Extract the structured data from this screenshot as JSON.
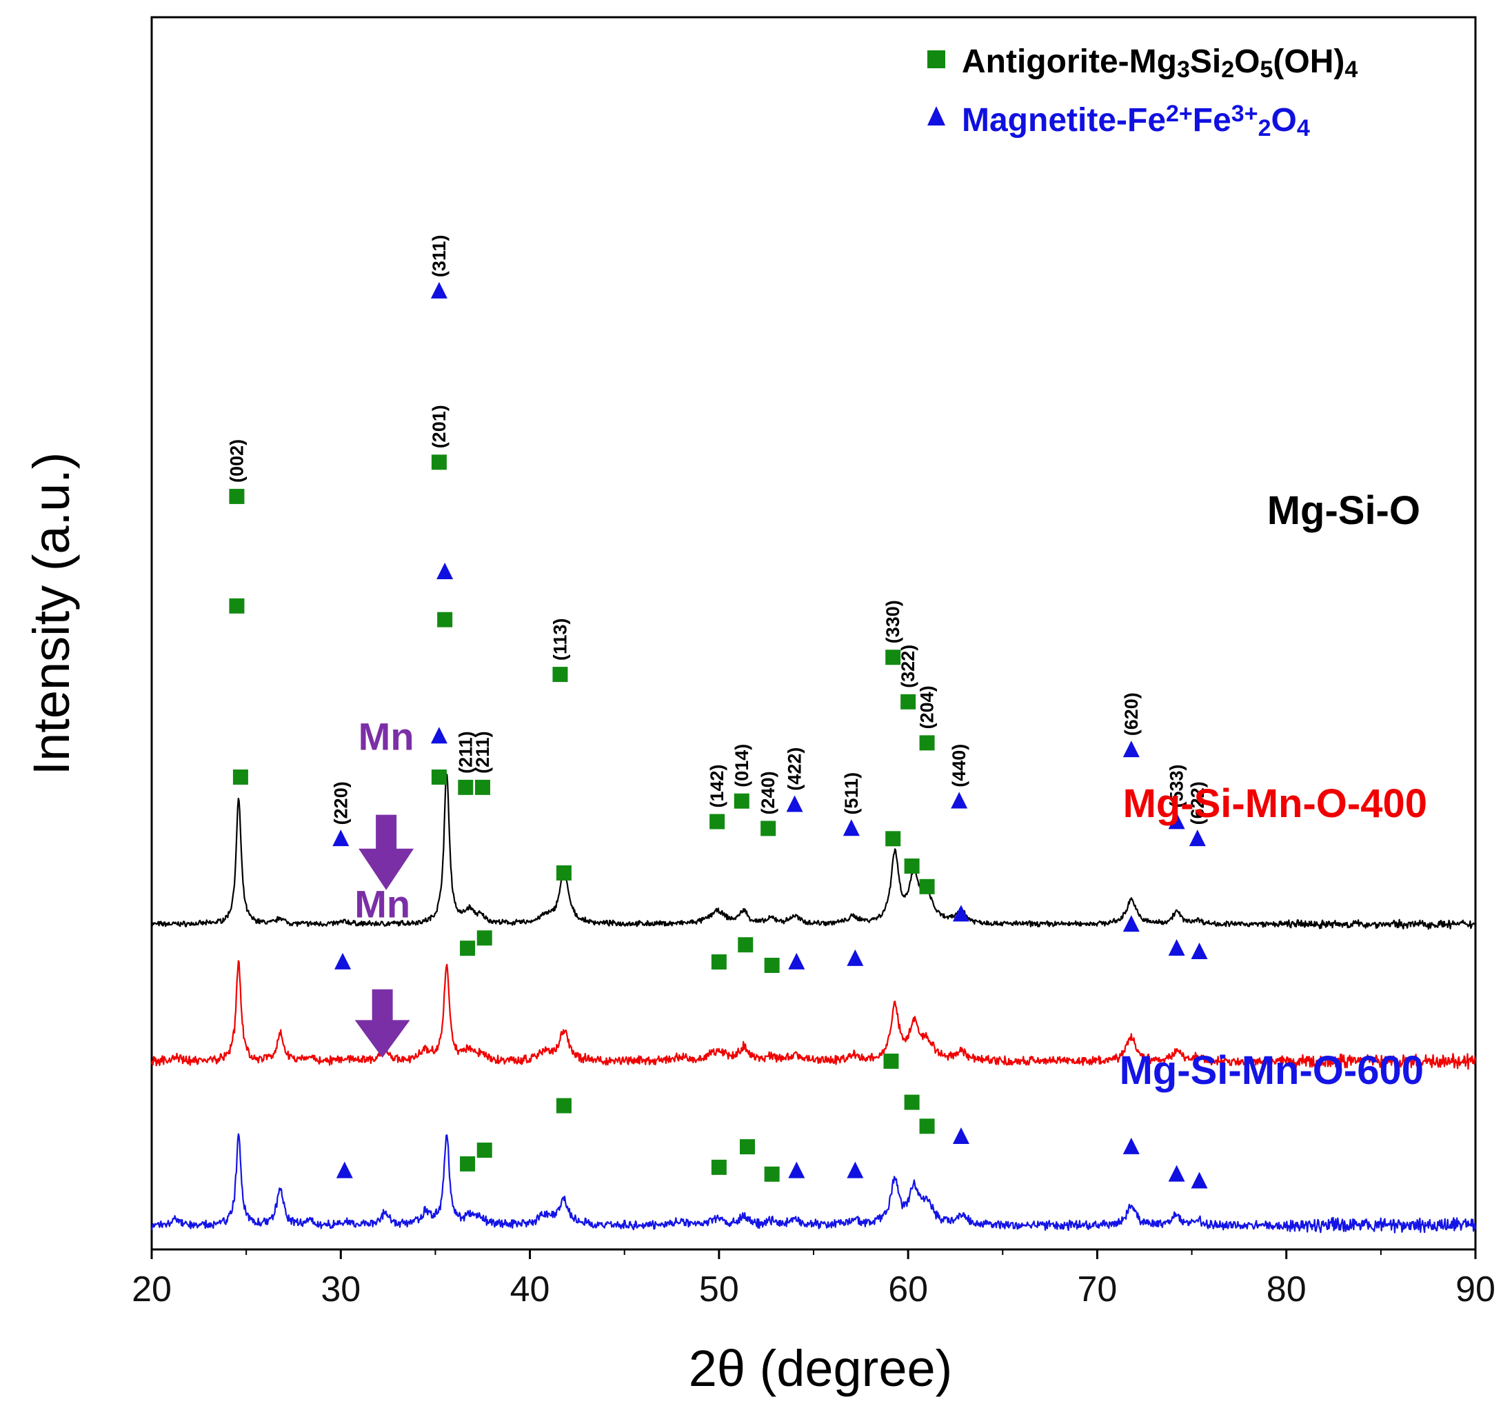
{
  "chart_data": {
    "type": "line",
    "title": "",
    "xlabel": "2θ  (degree)",
    "ylabel": "Intensity (a.u.)",
    "xlim": [
      20,
      90
    ],
    "xticks": [
      20,
      30,
      40,
      50,
      60,
      70,
      80,
      90
    ],
    "grid": false,
    "legend": {
      "placement": "top-right",
      "entries": [
        {
          "marker": "square",
          "color": "#128a12",
          "prefix": "Antigorite-Mg",
          "s1": "3",
          "mid1": "Si",
          "s2": "2",
          "mid2": "O",
          "s3": "5",
          "mid3": "(OH)",
          "s4": "4"
        },
        {
          "marker": "triangle",
          "color": "#1010e0",
          "prefix": "Magnetite-Fe",
          "sup1": "2+",
          "mid1": "Fe",
          "sup2": "3+",
          "s1": "2",
          "mid2": "O",
          "s2": "4"
        }
      ]
    },
    "peaks": [
      {
        "x": 21.2,
        "h": 0.05,
        "w": 0.18
      },
      {
        "x": 24.6,
        "h": 1.0,
        "w": 0.16
      },
      {
        "x": 26.8,
        "h": 0.3,
        "w": 0.2
      },
      {
        "x": 28.3,
        "h": 0.05,
        "w": 0.2
      },
      {
        "x": 30.2,
        "h": 0.03,
        "w": 0.3
      },
      {
        "x": 32.3,
        "h": 0.13,
        "w": 0.25
      },
      {
        "x": 34.5,
        "h": 0.1,
        "w": 0.35
      },
      {
        "x": 35.6,
        "h": 1.0,
        "w": 0.17
      },
      {
        "x": 36.8,
        "h": 0.1,
        "w": 0.3
      },
      {
        "x": 37.4,
        "h": 0.05,
        "w": 0.3
      },
      {
        "x": 40.8,
        "h": 0.08,
        "w": 0.4
      },
      {
        "x": 41.8,
        "h": 0.3,
        "w": 0.3
      },
      {
        "x": 48.0,
        "h": 0.04,
        "w": 0.4
      },
      {
        "x": 49.9,
        "h": 0.1,
        "w": 0.5
      },
      {
        "x": 51.3,
        "h": 0.14,
        "w": 0.25
      },
      {
        "x": 52.8,
        "h": 0.04,
        "w": 0.3
      },
      {
        "x": 54.0,
        "h": 0.06,
        "w": 0.3
      },
      {
        "x": 57.1,
        "h": 0.05,
        "w": 0.35
      },
      {
        "x": 59.3,
        "h": 0.55,
        "w": 0.25
      },
      {
        "x": 60.3,
        "h": 0.35,
        "w": 0.3
      },
      {
        "x": 61.0,
        "h": 0.18,
        "w": 0.4
      },
      {
        "x": 62.8,
        "h": 0.1,
        "w": 0.3
      },
      {
        "x": 71.8,
        "h": 0.25,
        "w": 0.3
      },
      {
        "x": 74.2,
        "h": 0.1,
        "w": 0.25
      },
      {
        "x": 75.3,
        "h": 0.04,
        "w": 0.3
      }
    ],
    "series": [
      {
        "name": "Mg-Si-O",
        "label": "Mg-Si-O",
        "color": "#000000",
        "baseline": 0.95,
        "scale": 0.2,
        "noise": 0.006,
        "seed": 7,
        "peak_scale": [
          0.0,
          1.0,
          0.05,
          0.0,
          0.02,
          0.0,
          0.0,
          1.2,
          0.1,
          0.05,
          0.05,
          0.4,
          0.0,
          0.1,
          0.1,
          0.04,
          0.06,
          0.05,
          0.55,
          0.35,
          0.2,
          0.1,
          0.2,
          0.1,
          0.03
        ],
        "squares": [
          {
            "x": 24.5,
            "y": 2.2,
            "hkl": "(002)"
          },
          {
            "x": 35.2,
            "y": 2.3,
            "hkl": "(201)"
          },
          {
            "x": 36.6,
            "y": 1.35,
            "hkl": "(211)"
          },
          {
            "x": 37.5,
            "y": 1.35,
            "hkl": "(211)"
          },
          {
            "x": 41.6,
            "y": 1.68,
            "hkl": "(113)"
          },
          {
            "x": 49.9,
            "y": 1.25,
            "hkl": "(142)"
          },
          {
            "x": 51.2,
            "y": 1.31,
            "hkl": "(014)"
          },
          {
            "x": 52.6,
            "y": 1.23,
            "hkl": "(240)"
          },
          {
            "x": 59.2,
            "y": 1.73,
            "hkl": "(330)"
          },
          {
            "x": 60.0,
            "y": 1.6,
            "hkl": "(322)"
          },
          {
            "x": 61.0,
            "y": 1.48,
            "hkl": "(204)"
          }
        ],
        "triangles": [
          {
            "x": 30.0,
            "y": 1.2,
            "hkl": "(220)"
          },
          {
            "x": 35.2,
            "y": 2.8,
            "hkl": "(311)"
          },
          {
            "x": 54.0,
            "y": 1.3,
            "hkl": "(422)"
          },
          {
            "x": 57.0,
            "y": 1.23,
            "hkl": "(511)"
          },
          {
            "x": 62.7,
            "y": 1.31,
            "hkl": "(440)"
          },
          {
            "x": 71.8,
            "y": 1.46,
            "hkl": "(620)"
          },
          {
            "x": 74.2,
            "y": 1.25,
            "hkl": "(533)"
          },
          {
            "x": 75.3,
            "y": 1.2,
            "hkl": "(622)"
          }
        ],
        "annotation": null
      },
      {
        "name": "Mg-Si-Mn-O-400",
        "label": "Mg-Si-Mn-O-400",
        "color": "#f00000",
        "baseline": 0.55,
        "scale": 0.18,
        "noise": 0.01,
        "seed": 19,
        "peak_scale": [
          0.05,
          1.0,
          0.3,
          0.05,
          0.03,
          0.13,
          0.1,
          1.0,
          0.1,
          0.05,
          0.08,
          0.3,
          0.04,
          0.1,
          0.14,
          0.04,
          0.06,
          0.05,
          0.55,
          0.35,
          0.18,
          0.1,
          0.25,
          0.1,
          0.04
        ],
        "squares": [
          {
            "x": 24.5,
            "y": 1.88
          },
          {
            "x": 35.5,
            "y": 1.84
          },
          {
            "x": 36.7,
            "y": 0.88
          },
          {
            "x": 37.6,
            "y": 0.91
          },
          {
            "x": 41.8,
            "y": 1.1
          },
          {
            "x": 50.0,
            "y": 0.84
          },
          {
            "x": 51.4,
            "y": 0.89
          },
          {
            "x": 52.8,
            "y": 0.83
          },
          {
            "x": 59.2,
            "y": 1.2
          },
          {
            "x": 60.2,
            "y": 1.12
          },
          {
            "x": 61.0,
            "y": 1.06
          }
        ],
        "triangles": [
          {
            "x": 30.1,
            "y": 0.84
          },
          {
            "x": 35.5,
            "y": 1.98
          },
          {
            "x": 54.1,
            "y": 0.84
          },
          {
            "x": 57.2,
            "y": 0.85
          },
          {
            "x": 62.8,
            "y": 0.98
          },
          {
            "x": 71.8,
            "y": 0.95
          },
          {
            "x": 74.2,
            "y": 0.88
          },
          {
            "x": 75.4,
            "y": 0.87
          }
        ],
        "annotation": {
          "text": "Mn",
          "x": 32.4,
          "y_text": 1.46,
          "y_arrow_top": 1.27,
          "y_arrow_bottom": 1.05
        }
      },
      {
        "name": "Mg-Si-Mn-O-600",
        "label": "Mg-Si-Mn-O-600",
        "color": "#1414e6",
        "baseline": 0.07,
        "scale": 0.18,
        "noise": 0.01,
        "seed": 31,
        "peak_scale": [
          0.08,
          0.9,
          0.4,
          0.05,
          0.03,
          0.12,
          0.12,
          0.9,
          0.1,
          0.05,
          0.1,
          0.25,
          0.04,
          0.06,
          0.1,
          0.04,
          0.05,
          0.05,
          0.45,
          0.35,
          0.2,
          0.1,
          0.2,
          0.1,
          0.05
        ],
        "squares": [
          {
            "x": 24.7,
            "y": 1.38
          },
          {
            "x": 35.2,
            "y": 1.38
          },
          {
            "x": 36.7,
            "y": 0.25
          },
          {
            "x": 37.6,
            "y": 0.29
          },
          {
            "x": 41.8,
            "y": 0.42
          },
          {
            "x": 50.0,
            "y": 0.24
          },
          {
            "x": 51.5,
            "y": 0.3
          },
          {
            "x": 52.8,
            "y": 0.22
          },
          {
            "x": 59.1,
            "y": 0.55
          },
          {
            "x": 60.2,
            "y": 0.43
          },
          {
            "x": 61.0,
            "y": 0.36
          }
        ],
        "triangles": [
          {
            "x": 30.2,
            "y": 0.23
          },
          {
            "x": 35.2,
            "y": 1.5
          },
          {
            "x": 54.1,
            "y": 0.23
          },
          {
            "x": 57.2,
            "y": 0.23
          },
          {
            "x": 62.8,
            "y": 0.33
          },
          {
            "x": 71.8,
            "y": 0.3
          },
          {
            "x": 74.2,
            "y": 0.22
          },
          {
            "x": 75.4,
            "y": 0.2
          }
        ],
        "annotation": {
          "text": "Mn",
          "x": 32.2,
          "y_text": 0.97,
          "y_arrow_top": 0.76,
          "y_arrow_bottom": 0.56
        }
      }
    ]
  }
}
